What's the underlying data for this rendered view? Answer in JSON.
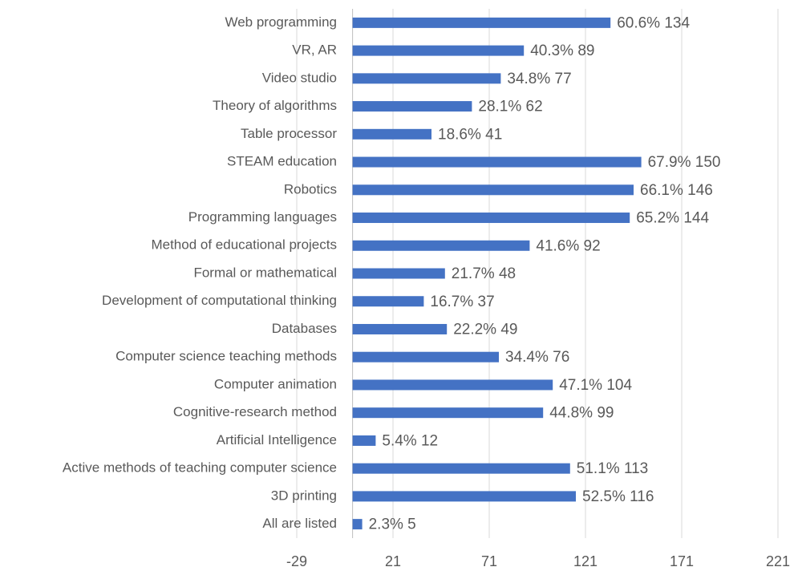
{
  "chart_data": {
    "type": "bar",
    "orientation": "horizontal",
    "categories": [
      "Web programming",
      "VR, AR",
      "Video studio",
      "Theory of algorithms",
      "Table processor",
      "STEAM education",
      "Robotics",
      "Programming languages",
      "Method of educational projects",
      "Formal or mathematical",
      "Development of computational thinking",
      "Databases",
      "Computer science teaching methods",
      "Computer animation",
      "Cognitive-research method",
      "Artificial Intelligence",
      "Active methods of teaching computer science",
      "3D printing",
      "All are listed"
    ],
    "values": [
      134,
      89,
      77,
      62,
      41,
      150,
      146,
      144,
      92,
      48,
      37,
      49,
      76,
      104,
      99,
      12,
      113,
      116,
      5
    ],
    "value_labels": [
      "60.6% 134",
      "40.3% 89",
      "34.8% 77",
      "28.1% 62",
      "18.6% 41",
      "67.9% 150",
      "66.1% 146",
      "65.2% 144",
      "41.6% 92",
      "21.7% 48",
      "16.7% 37",
      "22.2% 49",
      "34.4% 76",
      "47.1% 104",
      "44.8% 99",
      "5.4% 12",
      "51.1% 113",
      "52.5% 116",
      "2.3% 5"
    ],
    "color": "#4472c4",
    "xlim": [
      -29,
      221
    ],
    "xticks": [
      -29,
      21,
      71,
      121,
      171,
      221
    ],
    "grid": true
  }
}
